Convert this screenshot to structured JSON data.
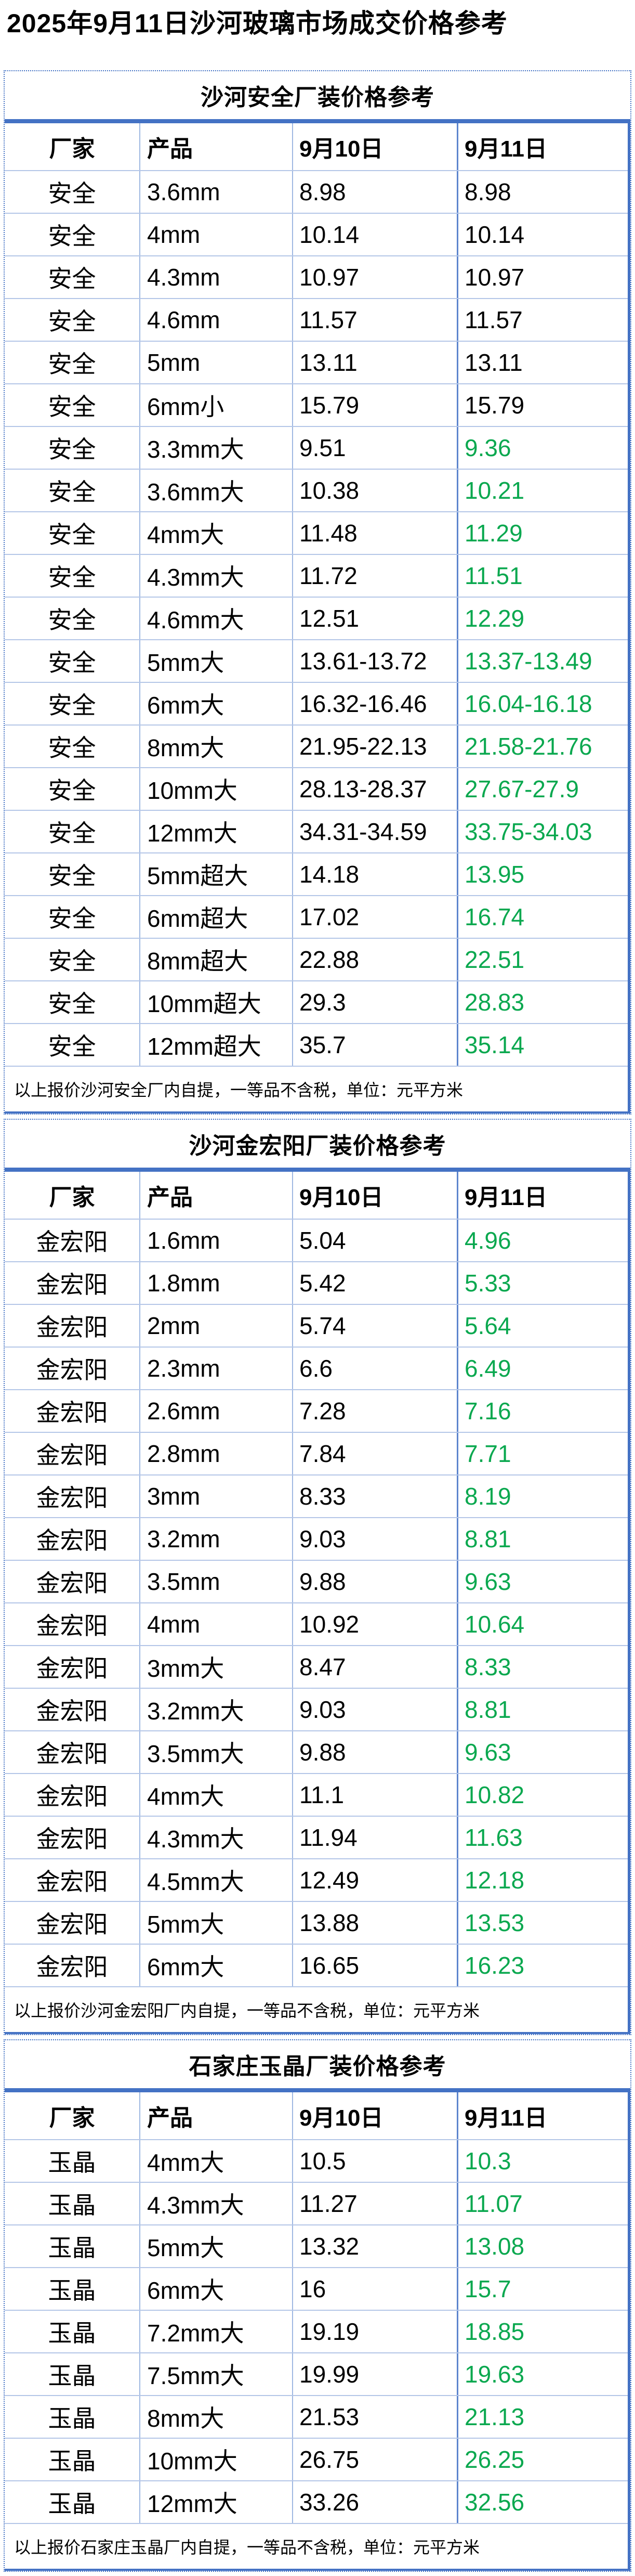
{
  "page_title": "2025年9月11日沙河玻璃市场成交价格参考",
  "columns": {
    "factory": "厂家",
    "product": "产品",
    "date1": "9月10日",
    "date2": "9月11日"
  },
  "colors": {
    "accent_blue": "#4472C4",
    "grid_line": "#B4C6E7",
    "price_down_green": "#0AA84F",
    "text": "#000000"
  },
  "unit_note_suffix": "一等品不含税，单位：元平方米",
  "tables": [
    {
      "title": "沙河安全厂装价格参考",
      "note": "以上报价沙河安全厂内自提，一等品不含税，单位：元平方米",
      "rows": [
        {
          "factory": "安全",
          "product": "3.6mm",
          "d0910": "8.98",
          "d0911": "8.98",
          "changed": false
        },
        {
          "factory": "安全",
          "product": "4mm",
          "d0910": "10.14",
          "d0911": "10.14",
          "changed": false
        },
        {
          "factory": "安全",
          "product": "4.3mm",
          "d0910": "10.97",
          "d0911": "10.97",
          "changed": false
        },
        {
          "factory": "安全",
          "product": "4.6mm",
          "d0910": "11.57",
          "d0911": "11.57",
          "changed": false
        },
        {
          "factory": "安全",
          "product": "5mm",
          "d0910": "13.11",
          "d0911": "13.11",
          "changed": false
        },
        {
          "factory": "安全",
          "product": "6mm小",
          "d0910": "15.79",
          "d0911": "15.79",
          "changed": false
        },
        {
          "factory": "安全",
          "product": "3.3mm大",
          "d0910": "9.51",
          "d0911": "9.36",
          "changed": true
        },
        {
          "factory": "安全",
          "product": "3.6mm大",
          "d0910": "10.38",
          "d0911": "10.21",
          "changed": true
        },
        {
          "factory": "安全",
          "product": "4mm大",
          "d0910": "11.48",
          "d0911": "11.29",
          "changed": true
        },
        {
          "factory": "安全",
          "product": "4.3mm大",
          "d0910": "11.72",
          "d0911": "11.51",
          "changed": true
        },
        {
          "factory": "安全",
          "product": "4.6mm大",
          "d0910": "12.51",
          "d0911": "12.29",
          "changed": true
        },
        {
          "factory": "安全",
          "product": "5mm大",
          "d0910": "13.61-13.72",
          "d0911": "13.37-13.49",
          "changed": true
        },
        {
          "factory": "安全",
          "product": "6mm大",
          "d0910": "16.32-16.46",
          "d0911": "16.04-16.18",
          "changed": true
        },
        {
          "factory": "安全",
          "product": "8mm大",
          "d0910": "21.95-22.13",
          "d0911": "21.58-21.76",
          "changed": true
        },
        {
          "factory": "安全",
          "product": "10mm大",
          "d0910": "28.13-28.37",
          "d0911": "27.67-27.9",
          "changed": true
        },
        {
          "factory": "安全",
          "product": "12mm大",
          "d0910": "34.31-34.59",
          "d0911": "33.75-34.03",
          "changed": true
        },
        {
          "factory": "安全",
          "product": "5mm超大",
          "d0910": "14.18",
          "d0911": "13.95",
          "changed": true
        },
        {
          "factory": "安全",
          "product": "6mm超大",
          "d0910": "17.02",
          "d0911": "16.74",
          "changed": true
        },
        {
          "factory": "安全",
          "product": "8mm超大",
          "d0910": "22.88",
          "d0911": "22.51",
          "changed": true
        },
        {
          "factory": "安全",
          "product": "10mm超大",
          "d0910": "29.3",
          "d0911": "28.83",
          "changed": true
        },
        {
          "factory": "安全",
          "product": "12mm超大",
          "d0910": "35.7",
          "d0911": "35.14",
          "changed": true
        }
      ]
    },
    {
      "title": "沙河金宏阳厂装价格参考",
      "note": "以上报价沙河金宏阳厂内自提，一等品不含税，单位：元平方米",
      "rows": [
        {
          "factory": "金宏阳",
          "product": "1.6mm",
          "d0910": "5.04",
          "d0911": "4.96",
          "changed": true
        },
        {
          "factory": "金宏阳",
          "product": "1.8mm",
          "d0910": "5.42",
          "d0911": "5.33",
          "changed": true
        },
        {
          "factory": "金宏阳",
          "product": "2mm",
          "d0910": "5.74",
          "d0911": "5.64",
          "changed": true
        },
        {
          "factory": "金宏阳",
          "product": "2.3mm",
          "d0910": "6.6",
          "d0911": "6.49",
          "changed": true
        },
        {
          "factory": "金宏阳",
          "product": "2.6mm",
          "d0910": "7.28",
          "d0911": "7.16",
          "changed": true
        },
        {
          "factory": "金宏阳",
          "product": "2.8mm",
          "d0910": "7.84",
          "d0911": "7.71",
          "changed": true
        },
        {
          "factory": "金宏阳",
          "product": "3mm",
          "d0910": "8.33",
          "d0911": "8.19",
          "changed": true
        },
        {
          "factory": "金宏阳",
          "product": "3.2mm",
          "d0910": "9.03",
          "d0911": "8.81",
          "changed": true
        },
        {
          "factory": "金宏阳",
          "product": "3.5mm",
          "d0910": "9.88",
          "d0911": "9.63",
          "changed": true
        },
        {
          "factory": "金宏阳",
          "product": "4mm",
          "d0910": "10.92",
          "d0911": "10.64",
          "changed": true
        },
        {
          "factory": "金宏阳",
          "product": "3mm大",
          "d0910": "8.47",
          "d0911": "8.33",
          "changed": true
        },
        {
          "factory": "金宏阳",
          "product": "3.2mm大",
          "d0910": "9.03",
          "d0911": "8.81",
          "changed": true
        },
        {
          "factory": "金宏阳",
          "product": "3.5mm大",
          "d0910": "9.88",
          "d0911": "9.63",
          "changed": true
        },
        {
          "factory": "金宏阳",
          "product": "4mm大",
          "d0910": "11.1",
          "d0911": "10.82",
          "changed": true
        },
        {
          "factory": "金宏阳",
          "product": "4.3mm大",
          "d0910": "11.94",
          "d0911": "11.63",
          "changed": true
        },
        {
          "factory": "金宏阳",
          "product": "4.5mm大",
          "d0910": "12.49",
          "d0911": "12.18",
          "changed": true
        },
        {
          "factory": "金宏阳",
          "product": "5mm大",
          "d0910": "13.88",
          "d0911": "13.53",
          "changed": true
        },
        {
          "factory": "金宏阳",
          "product": "6mm大",
          "d0910": "16.65",
          "d0911": "16.23",
          "changed": true
        }
      ]
    },
    {
      "title": "石家庄玉晶厂装价格参考",
      "note": "以上报价石家庄玉晶厂内自提，一等品不含税，单位：元平方米",
      "rows": [
        {
          "factory": "玉晶",
          "product": "4mm大",
          "d0910": "10.5",
          "d0911": "10.3",
          "changed": true
        },
        {
          "factory": "玉晶",
          "product": "4.3mm大",
          "d0910": "11.27",
          "d0911": "11.07",
          "changed": true
        },
        {
          "factory": "玉晶",
          "product": "5mm大",
          "d0910": "13.32",
          "d0911": "13.08",
          "changed": true
        },
        {
          "factory": "玉晶",
          "product": "6mm大",
          "d0910": "16",
          "d0911": "15.7",
          "changed": true
        },
        {
          "factory": "玉晶",
          "product": "7.2mm大",
          "d0910": "19.19",
          "d0911": "18.85",
          "changed": true
        },
        {
          "factory": "玉晶",
          "product": "7.5mm大",
          "d0910": "19.99",
          "d0911": "19.63",
          "changed": true
        },
        {
          "factory": "玉晶",
          "product": "8mm大",
          "d0910": "21.53",
          "d0911": "21.13",
          "changed": true
        },
        {
          "factory": "玉晶",
          "product": "10mm大",
          "d0910": "26.75",
          "d0911": "26.25",
          "changed": true
        },
        {
          "factory": "玉晶",
          "product": "12mm大",
          "d0910": "33.26",
          "d0911": "32.56",
          "changed": true
        }
      ]
    }
  ]
}
